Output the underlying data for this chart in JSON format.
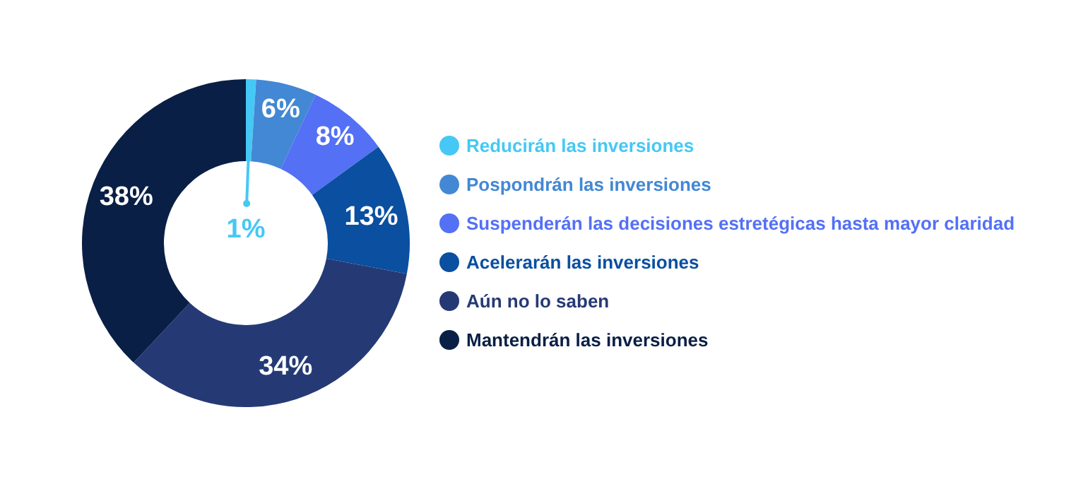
{
  "chart_data": {
    "type": "donut",
    "categories": [
      "Reducirán las inversiones",
      "Pospondrán las inversiones",
      "Suspenderán las decisiones estretégicas hasta mayor claridad",
      "Acelerarán las inversiones",
      "Aún no lo saben",
      "Mantendrán las inversiones"
    ],
    "values": [
      1,
      6,
      8,
      13,
      34,
      38
    ],
    "colors": [
      "#45c8f5",
      "#4288d4",
      "#5470f5",
      "#0a4fa0",
      "#253a75",
      "#0a1f45"
    ],
    "value_labels": [
      "1%",
      "6%",
      "8%",
      "13%",
      "34%",
      "38%"
    ],
    "legend": "right"
  }
}
